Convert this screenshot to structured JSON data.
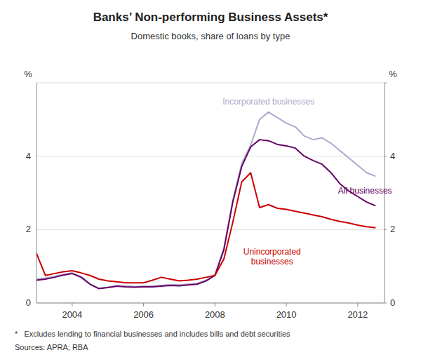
{
  "chart_data": {
    "type": "line",
    "title": "Banks’ Non-performing Business Assets*",
    "subtitle": "Domestic books, share of loans by type",
    "ylabel": "%",
    "y2label": "%",
    "footnote": "*   Excludes lending to financial businesses and includes bills and debt securities",
    "source": "Sources: APRA; RBA",
    "grid": true,
    "x": [
      2003.0,
      2003.25,
      2003.5,
      2003.75,
      2004.0,
      2004.25,
      2004.5,
      2004.75,
      2005.0,
      2005.25,
      2005.5,
      2005.75,
      2006.0,
      2006.25,
      2006.5,
      2006.75,
      2007.0,
      2007.25,
      2007.5,
      2007.75,
      2008.0,
      2008.25,
      2008.5,
      2008.75,
      2009.0,
      2009.25,
      2009.5,
      2009.75,
      2010.0,
      2010.25,
      2010.5,
      2010.75,
      2011.0,
      2011.25,
      2011.5,
      2011.75,
      2012.0,
      2012.25,
      2012.5
    ],
    "xlim": [
      2003.0,
      2012.75
    ],
    "xticks": [
      2004,
      2006,
      2008,
      2010,
      2012
    ],
    "ylim": [
      0,
      6
    ],
    "yticks": [
      0,
      2,
      4,
      {
        "value": 6,
        "label": null
      }
    ],
    "y2lim": [
      0,
      6
    ],
    "y2ticks": [
      0,
      2,
      4,
      {
        "value": 6,
        "label": null
      }
    ],
    "series": [
      {
        "color": "#aaaacc",
        "values": [
          0.65,
          0.68,
          0.72,
          0.78,
          0.82,
          0.72,
          0.52,
          0.4,
          0.43,
          0.47,
          0.46,
          0.45,
          0.46,
          0.46,
          0.48,
          0.5,
          0.49,
          0.51,
          0.53,
          0.62,
          0.77,
          1.5,
          2.8,
          3.8,
          4.3,
          5.0,
          5.2,
          5.05,
          4.9,
          4.8,
          4.55,
          4.45,
          4.5,
          4.35,
          4.15,
          3.95,
          3.75,
          3.55,
          3.45
        ]
      },
      {
        "color": "#660066",
        "values": [
          0.62,
          0.65,
          0.7,
          0.76,
          0.8,
          0.7,
          0.51,
          0.39,
          0.42,
          0.46,
          0.44,
          0.43,
          0.44,
          0.44,
          0.46,
          0.48,
          0.47,
          0.49,
          0.51,
          0.6,
          0.75,
          1.45,
          2.75,
          3.72,
          4.25,
          4.45,
          4.42,
          4.32,
          4.28,
          4.22,
          4.0,
          3.88,
          3.78,
          3.55,
          3.25,
          3.05,
          2.9,
          2.75,
          2.65
        ]
      },
      {
        "color": "#cc0000",
        "values": [
          1.35,
          0.75,
          0.8,
          0.85,
          0.88,
          0.82,
          0.75,
          0.65,
          0.6,
          0.58,
          0.55,
          0.55,
          0.55,
          0.62,
          0.7,
          0.65,
          0.6,
          0.62,
          0.65,
          0.7,
          0.75,
          1.2,
          2.2,
          3.3,
          3.55,
          2.6,
          2.68,
          2.58,
          2.55,
          2.5,
          2.45,
          2.4,
          2.35,
          2.28,
          2.22,
          2.18,
          2.12,
          2.08,
          2.05
        ]
      }
    ],
    "annotations": [
      {
        "text": "Incorporated businesses",
        "x": 2009.5,
        "y": 5.35,
        "color": "#aaaacc"
      },
      {
        "text": "All businesses",
        "x": 2011.45,
        "y": 3.05,
        "color": "#660066"
      },
      {
        "text": "Unincorporated\nbusinesses",
        "x": 2009.6,
        "y": 1.55,
        "color": "#cc0000"
      }
    ]
  }
}
